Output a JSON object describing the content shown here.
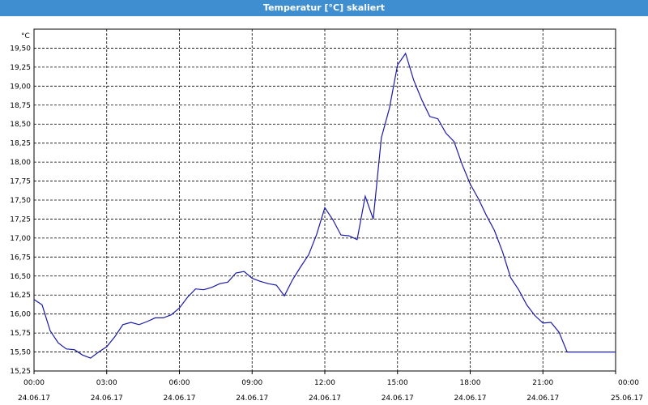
{
  "window": {
    "title": "Temperatur [°C] skaliert"
  },
  "chart_data": {
    "type": "line",
    "title": "Temperatur [°C] skaliert",
    "ylabel": "°C",
    "xlabel": "",
    "grid": true,
    "legend": "none",
    "line_color": "#1a1aa8",
    "ylim": [
      15.25,
      19.75
    ],
    "xlim": [
      "2017-06-24 00:00",
      "2017-06-25 00:00"
    ],
    "yticks": [
      "19,50",
      "19,25",
      "19,00",
      "18,75",
      "18,50",
      "18,25",
      "18,00",
      "17,75",
      "17,50",
      "17,25",
      "17,00",
      "16,75",
      "16,50",
      "16,25",
      "16,00",
      "15,75",
      "15,50",
      "15,25"
    ],
    "xticks": [
      {
        "time": "00:00",
        "date": "24.06.17"
      },
      {
        "time": "03:00",
        "date": "24.06.17"
      },
      {
        "time": "06:00",
        "date": "24.06.17"
      },
      {
        "time": "09:00",
        "date": "24.06.17"
      },
      {
        "time": "12:00",
        "date": "24.06.17"
      },
      {
        "time": "15:00",
        "date": "24.06.17"
      },
      {
        "time": "18:00",
        "date": "24.06.17"
      },
      {
        "time": "21:00",
        "date": "24.06.17"
      },
      {
        "time": "00:00",
        "date": "25.06.17"
      }
    ],
    "series": [
      {
        "x": [
          "00:00",
          "00:20",
          "00:40",
          "01:00",
          "01:20",
          "01:40",
          "02:00",
          "02:20",
          "02:40",
          "03:00",
          "03:20",
          "03:40",
          "04:00",
          "04:20",
          "04:40",
          "05:00",
          "05:20",
          "05:40",
          "06:00",
          "06:20",
          "06:40",
          "07:00",
          "07:20",
          "07:40",
          "08:00",
          "08:20",
          "08:40",
          "09:00",
          "09:20",
          "09:40",
          "10:00",
          "10:20",
          "10:40",
          "11:00",
          "11:20",
          "11:40",
          "12:00",
          "12:20",
          "12:40",
          "13:00",
          "13:20",
          "13:40",
          "14:00",
          "14:20",
          "14:40",
          "15:00",
          "15:20",
          "15:40",
          "16:00",
          "16:20",
          "16:40",
          "17:00",
          "17:20",
          "17:40",
          "18:00",
          "18:20",
          "18:40",
          "19:00",
          "19:20",
          "19:40",
          "20:00",
          "20:20",
          "20:40",
          "21:00",
          "21:20",
          "21:40",
          "22:00",
          "22:20",
          "22:40",
          "23:00",
          "23:20",
          "23:40",
          "24:00"
        ],
        "values": [
          16.19,
          16.12,
          15.78,
          15.62,
          15.54,
          15.53,
          15.46,
          15.42,
          15.5,
          15.57,
          15.7,
          15.86,
          15.89,
          15.86,
          15.9,
          15.95,
          15.95,
          15.99,
          16.08,
          16.22,
          16.33,
          16.32,
          16.35,
          16.4,
          16.42,
          16.54,
          16.56,
          16.47,
          16.43,
          16.4,
          16.38,
          16.24,
          16.45,
          16.62,
          16.78,
          17.05,
          17.4,
          17.24,
          17.04,
          17.03,
          16.98,
          17.55,
          17.25,
          18.32,
          18.71,
          19.28,
          19.43,
          19.08,
          18.82,
          18.6,
          18.57,
          18.38,
          18.27,
          17.97,
          17.71,
          17.52,
          17.3,
          17.1,
          16.82,
          16.48,
          16.32,
          16.12,
          15.98,
          15.88,
          15.89,
          15.76,
          15.5,
          15.5,
          15.5,
          15.5,
          15.5,
          15.5,
          15.5
        ]
      }
    ]
  }
}
